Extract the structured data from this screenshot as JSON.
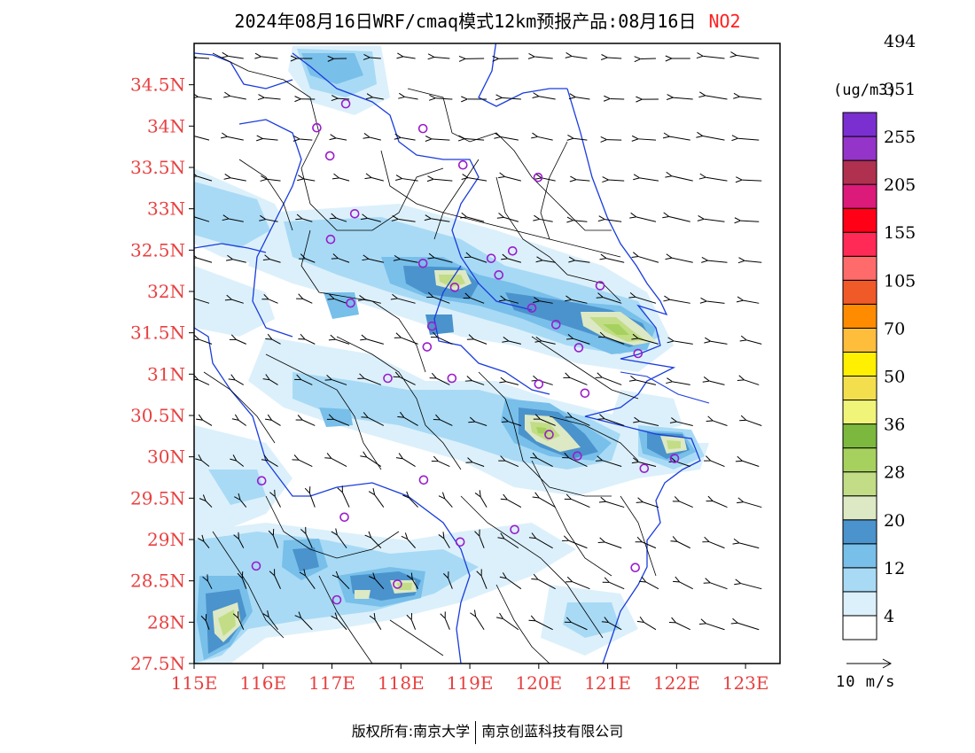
{
  "title": {
    "text": "2024年08月16日WRF/cmaq模式12km预报产品:08月16日",
    "pollutant": "NO2"
  },
  "axes": {
    "lon_labels": [
      "115E",
      "116E",
      "117E",
      "118E",
      "119E",
      "120E",
      "121E",
      "122E",
      "123E"
    ],
    "lat_labels": [
      "27.5N",
      "28N",
      "28.5N",
      "29N",
      "29.5N",
      "30N",
      "30.5N",
      "31N",
      "31.5N",
      "32N",
      "32.5N",
      "33N",
      "33.5N",
      "34N",
      "34.5N"
    ],
    "lon_range": [
      115,
      123.5
    ],
    "lat_range": [
      27.5,
      35
    ],
    "label_color": "#e84040"
  },
  "colorbar": {
    "unit": "(ug/m3)",
    "labels": [
      "4",
      "12",
      "20",
      "28",
      "36",
      "50",
      "70",
      "105",
      "155",
      "205",
      "255",
      "351",
      "494"
    ],
    "colors": [
      "#ffffff",
      "#dcf0fb",
      "#a8daf5",
      "#78bfea",
      "#4a93cc",
      "#dde9c4",
      "#c2dd86",
      "#a6d15e",
      "#7cb83e",
      "#f0f57a",
      "#f3df4e",
      "#ffef00",
      "#ffbd3c",
      "#ff8c00",
      "#f05a28",
      "#ff6b6b",
      "#ff2a55",
      "#ff0016",
      "#dc1a7a",
      "#b0304f",
      "#9434c8",
      "#7a30d0"
    ]
  },
  "reference_vector": {
    "label": "10 m/s"
  },
  "stations": [
    [
      116.78,
      33.98
    ],
    [
      117.2,
      34.27
    ],
    [
      116.97,
      33.64
    ],
    [
      118.32,
      33.97
    ],
    [
      118.9,
      33.53
    ],
    [
      119.99,
      33.38
    ],
    [
      117.33,
      32.94
    ],
    [
      116.98,
      32.63
    ],
    [
      119.31,
      32.4
    ],
    [
      119.62,
      32.49
    ],
    [
      120.89,
      32.07
    ],
    [
      118.32,
      32.34
    ],
    [
      118.78,
      32.05
    ],
    [
      119.42,
      32.2
    ],
    [
      117.27,
      31.86
    ],
    [
      119.9,
      31.8
    ],
    [
      120.25,
      31.6
    ],
    [
      118.45,
      31.58
    ],
    [
      118.38,
      31.33
    ],
    [
      120.58,
      31.32
    ],
    [
      121.44,
      31.25
    ],
    [
      117.81,
      30.95
    ],
    [
      118.74,
      30.95
    ],
    [
      120.0,
      30.88
    ],
    [
      120.67,
      30.77
    ],
    [
      120.15,
      30.27
    ],
    [
      120.56,
      30.01
    ],
    [
      121.97,
      29.98
    ],
    [
      121.53,
      29.86
    ],
    [
      115.98,
      29.71
    ],
    [
      118.33,
      29.72
    ],
    [
      117.18,
      29.27
    ],
    [
      119.65,
      29.12
    ],
    [
      118.86,
      28.97
    ],
    [
      115.9,
      28.68
    ],
    [
      121.4,
      28.66
    ],
    [
      117.95,
      28.46
    ],
    [
      117.07,
      28.27
    ]
  ],
  "footer": {
    "left": "版权所有:南京大学",
    "right": "南京创蓝科技有限公司"
  }
}
